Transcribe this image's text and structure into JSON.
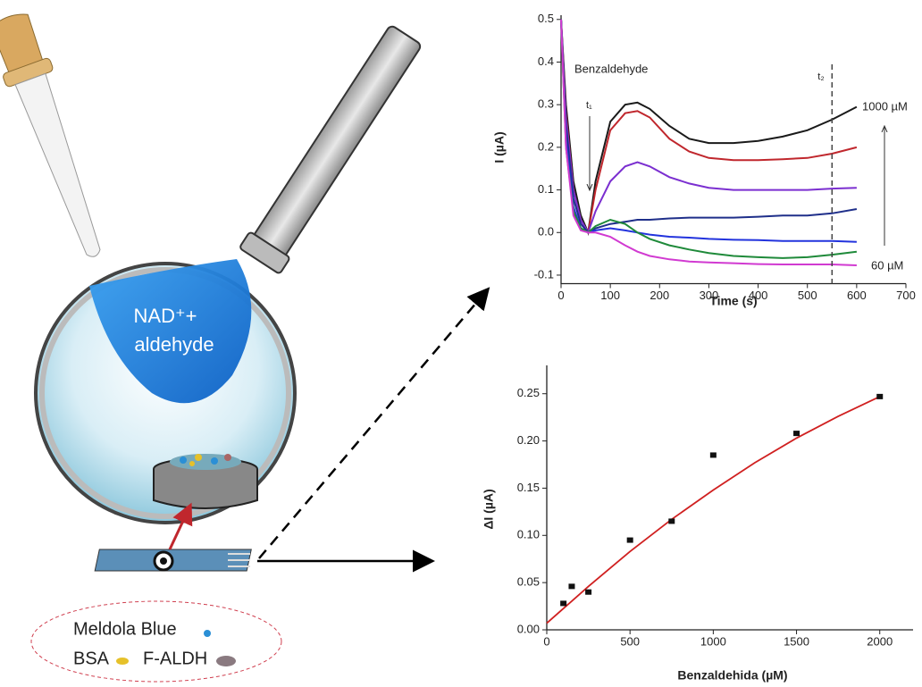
{
  "diagram": {
    "drop_label": [
      "NAD⁺+",
      "aldehyde"
    ],
    "legend": [
      "Meldola Blue",
      "BSA",
      "F-ALDH"
    ]
  },
  "chart_data": [
    {
      "type": "line",
      "x_label": "Time (s)",
      "y_label": "I (µA)",
      "x": [
        0,
        10,
        25,
        40,
        55,
        70,
        100,
        130,
        155,
        180,
        220,
        260,
        300,
        350,
        400,
        450,
        500,
        550,
        600
      ],
      "series": [
        {
          "color": "#1a1a1a",
          "values": [
            0.5,
            0.3,
            0.12,
            0.04,
            0.0,
            0.12,
            0.26,
            0.3,
            0.305,
            0.29,
            0.25,
            0.22,
            0.21,
            0.21,
            0.215,
            0.225,
            0.24,
            0.265,
            0.295
          ]
        },
        {
          "color": "#c0272d",
          "values": [
            0.5,
            0.28,
            0.1,
            0.03,
            0.0,
            0.1,
            0.24,
            0.28,
            0.285,
            0.27,
            0.22,
            0.19,
            0.175,
            0.17,
            0.17,
            0.172,
            0.175,
            0.185,
            0.2
          ]
        },
        {
          "color": "#7b2fd0",
          "values": [
            0.5,
            0.27,
            0.1,
            0.03,
            0.0,
            0.05,
            0.12,
            0.155,
            0.165,
            0.155,
            0.13,
            0.115,
            0.105,
            0.1,
            0.1,
            0.1,
            0.1,
            0.103,
            0.105
          ]
        },
        {
          "color": "#1f2f8a",
          "values": [
            0.5,
            0.25,
            0.08,
            0.02,
            0.0,
            0.01,
            0.02,
            0.025,
            0.03,
            0.03,
            0.033,
            0.035,
            0.035,
            0.035,
            0.037,
            0.04,
            0.04,
            0.045,
            0.055
          ]
        },
        {
          "color": "#2233dd",
          "values": [
            0.5,
            0.22,
            0.06,
            0.01,
            0.0,
            0.005,
            0.01,
            0.005,
            0.0,
            -0.005,
            -0.01,
            -0.012,
            -0.015,
            -0.017,
            -0.018,
            -0.02,
            -0.02,
            -0.02,
            -0.022
          ]
        },
        {
          "color": "#1f8a3a",
          "values": [
            0.5,
            0.2,
            0.05,
            0.01,
            0.0,
            0.015,
            0.03,
            0.02,
            0.0,
            -0.015,
            -0.03,
            -0.04,
            -0.048,
            -0.055,
            -0.058,
            -0.06,
            -0.058,
            -0.052,
            -0.045
          ]
        },
        {
          "color": "#d13ad1",
          "values": [
            0.5,
            0.2,
            0.04,
            0.005,
            0.0,
            0.0,
            -0.01,
            -0.03,
            -0.045,
            -0.055,
            -0.063,
            -0.068,
            -0.07,
            -0.072,
            -0.074,
            -0.075,
            -0.075,
            -0.075,
            -0.077
          ]
        }
      ],
      "xlim": [
        0,
        700
      ],
      "xticks": [
        0,
        100,
        200,
        300,
        400,
        500,
        600,
        700
      ],
      "ylim": [
        -0.12,
        0.51
      ],
      "yticks": [
        -0.1,
        {
          "value": 0,
          "label": "0.0"
        },
        0.1,
        0.2,
        0.3,
        0.4,
        0.5
      ],
      "annotations": {
        "reagent": "Benzaldehyde",
        "t1": "t₁",
        "t2": "t₂",
        "high": "1000 µM",
        "low": "60 µM"
      },
      "vline": 550
    },
    {
      "type": "scatter",
      "x_label": "Benzaldehida (µM)",
      "y_label": "ΔI (µA)",
      "x": [
        100,
        150,
        250,
        500,
        750,
        1000,
        1500,
        2000
      ],
      "values": [
        0.028,
        0.046,
        0.04,
        0.095,
        0.115,
        0.185,
        0.208,
        0.247
      ],
      "color": "#111111",
      "fit": {
        "color": "#d02020",
        "x": [
          0,
          250,
          500,
          750,
          1000,
          1250,
          1500,
          1750,
          2000
        ],
        "values": [
          0.007,
          0.046,
          0.083,
          0.117,
          0.148,
          0.177,
          0.203,
          0.226,
          0.247
        ]
      },
      "xlim": [
        0,
        2200
      ],
      "xticks": [
        0,
        500,
        1000,
        1500,
        2000
      ],
      "ylim": [
        0,
        0.28
      ],
      "yticks": [
        {
          "value": 0,
          "label": "0.00"
        },
        {
          "value": 0.05,
          "label": "0.05"
        },
        {
          "value": 0.1,
          "label": "0.10"
        },
        {
          "value": 0.15,
          "label": "0.15"
        },
        {
          "value": 0.2,
          "label": "0.20"
        },
        {
          "value": 0.25,
          "label": "0.25"
        }
      ]
    }
  ]
}
